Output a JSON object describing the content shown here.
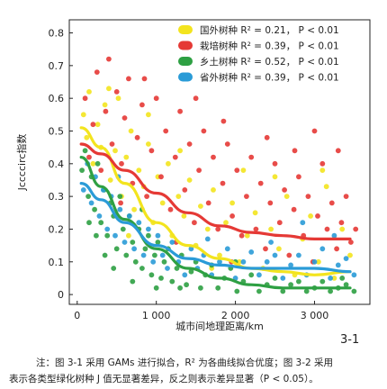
{
  "chart_data": {
    "type": "scatter",
    "ylabel": "Jccccirc指数",
    "xlabel": "城市间地理距离/km",
    "xlim": [
      -100,
      3700
    ],
    "ylim": [
      -0.03,
      0.84
    ],
    "xticks": [
      0,
      1000,
      2000,
      3000
    ],
    "xtick_labels": [
      "0",
      "1 000",
      "2 000",
      "3 000"
    ],
    "yticks": [
      0,
      0.1,
      0.2,
      0.3,
      0.4,
      0.5,
      0.6,
      0.7,
      0.8
    ],
    "ytick_labels": [
      "0",
      "0.1",
      "0.2",
      "0.3",
      "0.4",
      "0.5",
      "0.6",
      "0.7",
      "0.8"
    ],
    "grid": false,
    "legend_position": "top-right",
    "series": [
      {
        "name": "国外树种",
        "stat": "R² = 0.21， P < 0.01",
        "color": "#f3e41e",
        "curve": [
          [
            50,
            0.51
          ],
          [
            300,
            0.45
          ],
          [
            600,
            0.34
          ],
          [
            1000,
            0.22
          ],
          [
            1400,
            0.15
          ],
          [
            1800,
            0.11
          ],
          [
            2200,
            0.08
          ],
          [
            2600,
            0.07
          ],
          [
            3000,
            0.06
          ],
          [
            3450,
            0.07
          ]
        ],
        "points": [
          [
            80,
            0.55
          ],
          [
            120,
            0.48
          ],
          [
            150,
            0.62
          ],
          [
            200,
            0.4
          ],
          [
            260,
            0.52
          ],
          [
            300,
            0.45
          ],
          [
            350,
            0.58
          ],
          [
            420,
            0.35
          ],
          [
            480,
            0.44
          ],
          [
            520,
            0.6
          ],
          [
            560,
            0.3
          ],
          [
            620,
            0.42
          ],
          [
            680,
            0.5
          ],
          [
            720,
            0.26
          ],
          [
            780,
            0.38
          ],
          [
            840,
            0.33
          ],
          [
            900,
            0.46
          ],
          [
            960,
            0.22
          ],
          [
            1020,
            0.36
          ],
          [
            1080,
            0.28
          ],
          [
            1150,
            0.4
          ],
          [
            1200,
            0.18
          ],
          [
            1280,
            0.3
          ],
          [
            1350,
            0.24
          ],
          [
            1420,
            0.35
          ],
          [
            1500,
            0.15
          ],
          [
            1560,
            0.27
          ],
          [
            1650,
            0.2
          ],
          [
            1720,
            0.32
          ],
          [
            1800,
            0.12
          ],
          [
            1880,
            0.22
          ],
          [
            1960,
            0.28
          ],
          [
            2050,
            0.1
          ],
          [
            2150,
            0.18
          ],
          [
            2250,
            0.25
          ],
          [
            2350,
            0.08
          ],
          [
            2450,
            0.2
          ],
          [
            2550,
            0.14
          ],
          [
            2650,
            0.3
          ],
          [
            2750,
            0.06
          ],
          [
            2850,
            0.17
          ],
          [
            2950,
            0.24
          ],
          [
            3050,
            0.1
          ],
          [
            3150,
            0.33
          ],
          [
            3250,
            0.05
          ],
          [
            3350,
            0.2
          ],
          [
            3450,
            0.12
          ],
          [
            900,
            0.55
          ],
          [
            1300,
            0.44
          ],
          [
            2500,
            0.36
          ],
          [
            3100,
            0.38
          ],
          [
            650,
            0.18
          ],
          [
            1700,
            0.08
          ],
          [
            2100,
            0.38
          ],
          [
            400,
            0.63
          ]
        ]
      },
      {
        "name": "栽培树种",
        "stat": "R² = 0.39， P < 0.01",
        "color": "#e53935",
        "curve": [
          [
            50,
            0.46
          ],
          [
            300,
            0.43
          ],
          [
            600,
            0.38
          ],
          [
            1000,
            0.31
          ],
          [
            1400,
            0.25
          ],
          [
            1800,
            0.21
          ],
          [
            2200,
            0.19
          ],
          [
            2600,
            0.18
          ],
          [
            3000,
            0.17
          ],
          [
            3450,
            0.17
          ]
        ],
        "points": [
          [
            100,
            0.6
          ],
          [
            150,
            0.42
          ],
          [
            200,
            0.52
          ],
          [
            250,
            0.68
          ],
          [
            300,
            0.38
          ],
          [
            360,
            0.56
          ],
          [
            400,
            0.72
          ],
          [
            440,
            0.46
          ],
          [
            500,
            0.62
          ],
          [
            560,
            0.4
          ],
          [
            600,
            0.54
          ],
          [
            650,
            0.66
          ],
          [
            700,
            0.34
          ],
          [
            760,
            0.48
          ],
          [
            820,
            0.58
          ],
          [
            880,
            0.3
          ],
          [
            940,
            0.44
          ],
          [
            1000,
            0.6
          ],
          [
            1060,
            0.36
          ],
          [
            1120,
            0.5
          ],
          [
            1180,
            0.26
          ],
          [
            1240,
            0.42
          ],
          [
            1300,
            0.56
          ],
          [
            1360,
            0.32
          ],
          [
            1420,
            0.46
          ],
          [
            1480,
            0.22
          ],
          [
            1540,
            0.38
          ],
          [
            1600,
            0.5
          ],
          [
            1660,
            0.28
          ],
          [
            1720,
            0.42
          ],
          [
            1780,
            0.2
          ],
          [
            1840,
            0.34
          ],
          [
            1900,
            0.46
          ],
          [
            1960,
            0.24
          ],
          [
            2020,
            0.38
          ],
          [
            2080,
            0.18
          ],
          [
            2140,
            0.3
          ],
          [
            2200,
            0.42
          ],
          [
            2260,
            0.2
          ],
          [
            2320,
            0.34
          ],
          [
            2380,
            0.14
          ],
          [
            2440,
            0.28
          ],
          [
            2500,
            0.4
          ],
          [
            2560,
            0.22
          ],
          [
            2620,
            0.32
          ],
          [
            2680,
            0.12
          ],
          [
            2740,
            0.26
          ],
          [
            2800,
            0.36
          ],
          [
            2860,
            0.18
          ],
          [
            2920,
            0.3
          ],
          [
            2980,
            0.1
          ],
          [
            3040,
            0.24
          ],
          [
            3100,
            0.4
          ],
          [
            3160,
            0.2
          ],
          [
            3220,
            0.28
          ],
          [
            3280,
            0.14
          ],
          [
            3340,
            0.22
          ],
          [
            3400,
            0.3
          ],
          [
            3460,
            0.16
          ],
          [
            3520,
            0.2
          ],
          [
            3000,
            0.5
          ],
          [
            2400,
            0.48
          ],
          [
            1850,
            0.53
          ],
          [
            1500,
            0.6
          ],
          [
            850,
            0.66
          ],
          [
            3300,
            0.44
          ],
          [
            2750,
            0.44
          ],
          [
            550,
            0.28
          ],
          [
            1250,
            0.16
          ],
          [
            1950,
            0.1
          ]
        ]
      },
      {
        "name": "乡土树种",
        "stat": "R² = 0.52， P < 0.01",
        "color": "#2ea043",
        "curve": [
          [
            50,
            0.42
          ],
          [
            300,
            0.33
          ],
          [
            600,
            0.23
          ],
          [
            1000,
            0.14
          ],
          [
            1400,
            0.08
          ],
          [
            1800,
            0.05
          ],
          [
            2200,
            0.03
          ],
          [
            2600,
            0.02
          ],
          [
            3000,
            0.02
          ],
          [
            3450,
            0.02
          ]
        ],
        "points": [
          [
            60,
            0.38
          ],
          [
            100,
            0.44
          ],
          [
            140,
            0.3
          ],
          [
            180,
            0.36
          ],
          [
            220,
            0.26
          ],
          [
            260,
            0.4
          ],
          [
            300,
            0.22
          ],
          [
            340,
            0.32
          ],
          [
            380,
            0.18
          ],
          [
            420,
            0.28
          ],
          [
            460,
            0.24
          ],
          [
            500,
            0.14
          ],
          [
            540,
            0.3
          ],
          [
            580,
            0.2
          ],
          [
            620,
            0.12
          ],
          [
            660,
            0.24
          ],
          [
            700,
            0.16
          ],
          [
            740,
            0.1
          ],
          [
            780,
            0.2
          ],
          [
            820,
            0.08
          ],
          [
            860,
            0.14
          ],
          [
            900,
            0.18
          ],
          [
            940,
            0.06
          ],
          [
            980,
            0.12
          ],
          [
            1020,
            0.16
          ],
          [
            1060,
            0.05
          ],
          [
            1100,
            0.1
          ],
          [
            1150,
            0.14
          ],
          [
            1200,
            0.04
          ],
          [
            1260,
            0.08
          ],
          [
            1320,
            0.12
          ],
          [
            1380,
            0.03
          ],
          [
            1440,
            0.07
          ],
          [
            1500,
            0.1
          ],
          [
            1560,
            0.02
          ],
          [
            1620,
            0.06
          ],
          [
            1700,
            0.09
          ],
          [
            1780,
            0.02
          ],
          [
            1860,
            0.05
          ],
          [
            1940,
            0.08
          ],
          [
            2020,
            0.01
          ],
          [
            2100,
            0.04
          ],
          [
            2200,
            0.06
          ],
          [
            2300,
            0.01
          ],
          [
            2400,
            0.03
          ],
          [
            2500,
            0.05
          ],
          [
            2600,
            0.01
          ],
          [
            2700,
            0.03
          ],
          [
            2800,
            0.04
          ],
          [
            2900,
            0.01
          ],
          [
            3000,
            0.02
          ],
          [
            3100,
            0.04
          ],
          [
            3200,
            0.01
          ],
          [
            3300,
            0.02
          ],
          [
            3400,
            0.03
          ],
          [
            3500,
            0.01
          ],
          [
            240,
            0.18
          ],
          [
            460,
            0.08
          ],
          [
            700,
            0.04
          ],
          [
            1000,
            0.02
          ],
          [
            150,
            0.22
          ],
          [
            350,
            0.12
          ],
          [
            820,
            0.26
          ],
          [
            1300,
            0.02
          ],
          [
            2000,
            0.1
          ],
          [
            3350,
            0.05
          ]
        ]
      },
      {
        "name": "省外树种",
        "stat": "R² = 0.39， P < 0.01",
        "color": "#2a9bd7",
        "curve": [
          [
            50,
            0.34
          ],
          [
            300,
            0.29
          ],
          [
            600,
            0.22
          ],
          [
            1000,
            0.15
          ],
          [
            1400,
            0.11
          ],
          [
            1800,
            0.09
          ],
          [
            2200,
            0.08
          ],
          [
            2600,
            0.08
          ],
          [
            3000,
            0.08
          ],
          [
            3450,
            0.07
          ]
        ],
        "points": [
          [
            80,
            0.32
          ],
          [
            130,
            0.4
          ],
          [
            180,
            0.28
          ],
          [
            230,
            0.36
          ],
          [
            280,
            0.24
          ],
          [
            330,
            0.32
          ],
          [
            380,
            0.2
          ],
          [
            430,
            0.3
          ],
          [
            480,
            0.18
          ],
          [
            540,
            0.26
          ],
          [
            600,
            0.16
          ],
          [
            660,
            0.24
          ],
          [
            720,
            0.14
          ],
          [
            780,
            0.22
          ],
          [
            840,
            0.12
          ],
          [
            900,
            0.2
          ],
          [
            960,
            0.1
          ],
          [
            1020,
            0.18
          ],
          [
            1080,
            0.12
          ],
          [
            1140,
            0.08
          ],
          [
            1200,
            0.16
          ],
          [
            1280,
            0.1
          ],
          [
            1360,
            0.06
          ],
          [
            1440,
            0.14
          ],
          [
            1520,
            0.08
          ],
          [
            1600,
            0.12
          ],
          [
            1700,
            0.06
          ],
          [
            1800,
            0.1
          ],
          [
            1900,
            0.14
          ],
          [
            2000,
            0.05
          ],
          [
            2100,
            0.1
          ],
          [
            2200,
            0.13
          ],
          [
            2300,
            0.06
          ],
          [
            2400,
            0.1
          ],
          [
            2500,
            0.12
          ],
          [
            2600,
            0.05
          ],
          [
            2700,
            0.09
          ],
          [
            2800,
            0.12
          ],
          [
            2900,
            0.06
          ],
          [
            3000,
            0.1
          ],
          [
            3100,
            0.14
          ],
          [
            3200,
            0.05
          ],
          [
            3300,
            0.09
          ],
          [
            3400,
            0.11
          ],
          [
            3500,
            0.06
          ],
          [
            2850,
            0.22
          ],
          [
            3250,
            0.18
          ],
          [
            520,
            0.36
          ],
          [
            1650,
            0.17
          ],
          [
            2450,
            0.16
          ]
        ]
      }
    ]
  },
  "figure_label": "3-1",
  "caption": {
    "line1": "注：图 3-1 采用 GAMs 进行拟合，R² 为各曲线拟合优度；图 3-2 采用",
    "line2": "表示各类型绿化树种 J 值无显著差异，反之则表示差异显著（P < 0.05）。"
  }
}
